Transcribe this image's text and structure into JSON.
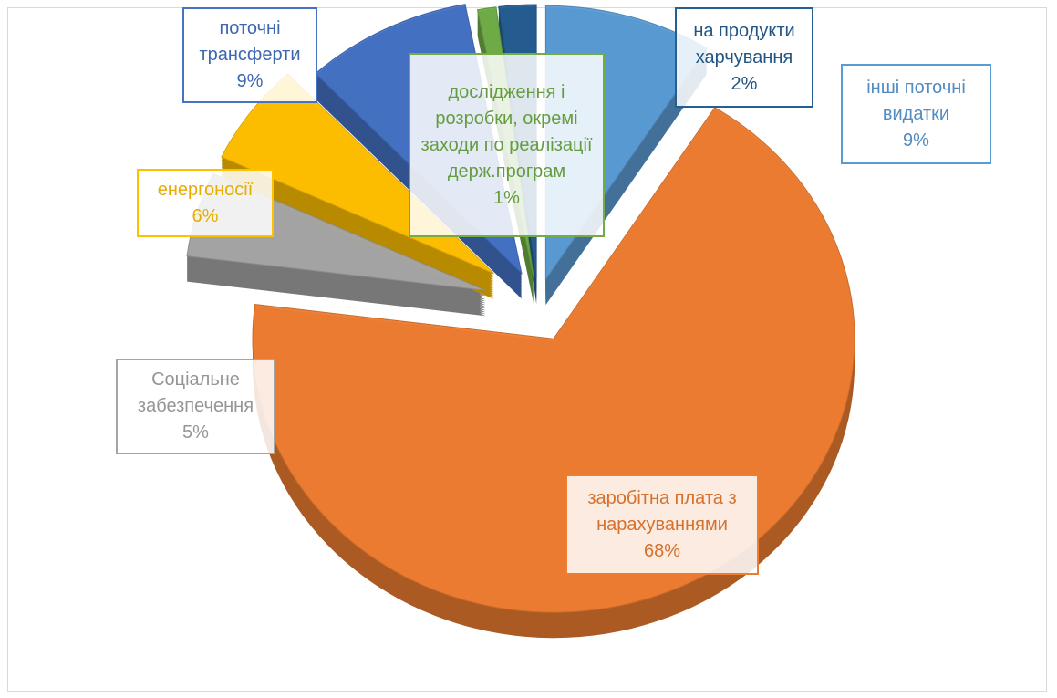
{
  "chart_data": {
    "type": "pie",
    "categories": [
      "інші поточні видатки",
      "заробітна плата з нарахуваннями",
      "Соціальне забезпечення",
      "енергоносії",
      "поточні трансферти",
      "дослідження і розробки, окремі заходи по реалізації держ.програм",
      "на продукти харчування"
    ],
    "values": [
      9,
      68,
      5,
      6,
      9,
      1,
      2
    ],
    "value_labels": [
      "9%",
      "68%",
      "5%",
      "6%",
      "9%",
      "1%",
      "2%"
    ],
    "colors": [
      "#5b9bd5",
      "#ed7d31",
      "#a5a5a5",
      "#ffc000",
      "#4472c4",
      "#70ad47",
      "#255e91"
    ],
    "label_colors": [
      "#5b9bd5",
      "#ed7d31",
      "#a5a5a5",
      "#ffc000",
      "#4472c4",
      "#70ad47",
      "#255e91"
    ]
  }
}
